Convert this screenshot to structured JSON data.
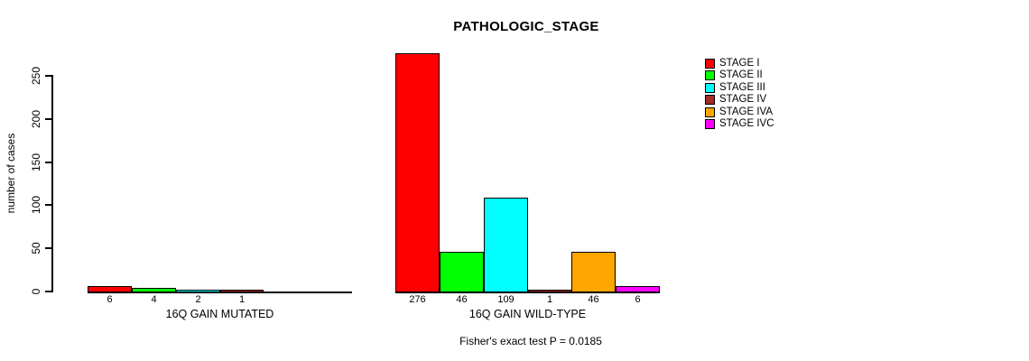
{
  "footnote": "Fisher's exact test P = 0.0185",
  "chart_data": {
    "type": "bar",
    "title": "PATHOLOGIC_STAGE",
    "ylabel": "number of cases",
    "xlabel": "",
    "ylim": [
      0,
      276
    ],
    "yticks": [
      0,
      50,
      100,
      150,
      200,
      250
    ],
    "grid": false,
    "legend_position": "right",
    "stages": [
      {
        "name": "STAGE I",
        "color": "#FF0000"
      },
      {
        "name": "STAGE II",
        "color": "#00FF00"
      },
      {
        "name": "STAGE III",
        "color": "#00FFFF"
      },
      {
        "name": "STAGE IV",
        "color": "#A52A2A"
      },
      {
        "name": "STAGE IVA",
        "color": "#FFA500"
      },
      {
        "name": "STAGE IVC",
        "color": "#FF00FF"
      }
    ],
    "groups": [
      {
        "label": "16Q GAIN MUTATED",
        "values": [
          6,
          4,
          2,
          1,
          0,
          0
        ],
        "bar_labels": [
          "6",
          "4",
          "2",
          "1",
          "",
          ""
        ]
      },
      {
        "label": "16Q GAIN WILD-TYPE",
        "values": [
          276,
          46,
          109,
          1,
          46,
          6
        ],
        "bar_labels": [
          "276",
          "46",
          "109",
          "1",
          "46",
          "6"
        ]
      }
    ]
  }
}
